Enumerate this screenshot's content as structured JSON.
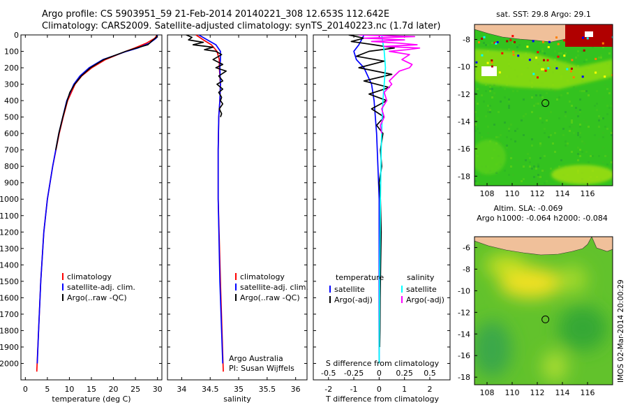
{
  "header": {
    "line1": "Argo profile: CS 5903951_59 21-Feb-2014 20140221_308 12.653S 112.642E",
    "line2": "Climatology: CARS2009. Satellite-adjusted climatology: synTS_20140223.nc (1.7d later)"
  },
  "chart_data": [
    {
      "type": "line",
      "id": "temperature",
      "xlabel": "temperature (deg C)",
      "xlim": [
        -1,
        31
      ],
      "ylim": [
        2100,
        0
      ],
      "xticks": [
        0,
        5,
        10,
        15,
        20,
        25,
        30
      ],
      "yticks": [
        0,
        100,
        200,
        300,
        400,
        500,
        600,
        700,
        800,
        900,
        1000,
        1100,
        1200,
        1300,
        1400,
        1500,
        1600,
        1700,
        1800,
        1900,
        2000
      ],
      "legend": [
        "climatology",
        "satellite-adj. clim.",
        "Argo(..raw -QC)"
      ],
      "series": [
        {
          "name": "climatology",
          "color": "#ff0000",
          "depth": [
            0,
            20,
            50,
            80,
            100,
            150,
            200,
            250,
            300,
            400,
            500,
            600,
            800,
            1000,
            1200,
            1500,
            1800,
            2050
          ],
          "values": [
            29.9,
            29.4,
            27.5,
            24.8,
            22.8,
            18.2,
            15.1,
            12.8,
            11.3,
            9.6,
            8.6,
            7.7,
            6.2,
            5.0,
            4.2,
            3.5,
            3.0,
            2.6
          ]
        },
        {
          "name": "satellite-adj. clim.",
          "color": "#0000ff",
          "depth": [
            0,
            20,
            50,
            80,
            100,
            150,
            200,
            250,
            300,
            400,
            500,
            600,
            800,
            1000,
            1200,
            1500,
            1800,
            2000
          ],
          "values": [
            30.0,
            29.7,
            28.2,
            25.5,
            23.0,
            17.6,
            14.5,
            12.4,
            11.0,
            9.4,
            8.5,
            7.6,
            6.2,
            5.0,
            4.2,
            3.5,
            3.0,
            2.7
          ]
        },
        {
          "name": "Argo(..raw -QC)",
          "color": "#000000",
          "depth": [
            0,
            10,
            20,
            40,
            60,
            80,
            100,
            150,
            200,
            250,
            300,
            350,
            400,
            500,
            600,
            700
          ],
          "values": [
            29.8,
            29.9,
            29.5,
            28.6,
            27.8,
            25.2,
            22.8,
            17.8,
            14.8,
            12.7,
            11.2,
            10.1,
            9.5,
            8.5,
            7.6,
            6.9
          ]
        }
      ]
    },
    {
      "type": "line",
      "id": "salinity",
      "xlabel": "salinity",
      "xlim": [
        33.75,
        36.2
      ],
      "ylim": [
        2100,
        0
      ],
      "xticks": [
        34,
        34.5,
        35,
        35.5,
        36
      ],
      "legend": [
        "climatology",
        "satellite-adj. clim.",
        "Argo(..raw -QC)"
      ],
      "annotation": [
        "Argo Australia",
        "PI: Susan Wijffels"
      ],
      "series": [
        {
          "name": "climatology",
          "color": "#ff0000",
          "depth": [
            0,
            30,
            60,
            100,
            150,
            200,
            300,
            400,
            500,
            700,
            1000,
            1500,
            2050
          ],
          "values": [
            34.25,
            34.38,
            34.52,
            34.62,
            34.66,
            34.66,
            34.68,
            34.67,
            34.65,
            34.64,
            34.64,
            34.68,
            34.73
          ]
        },
        {
          "name": "satellite-adj. clim.",
          "color": "#0000ff",
          "depth": [
            0,
            30,
            60,
            100,
            150,
            200,
            300,
            400,
            500,
            700,
            1000,
            1500,
            2000
          ],
          "values": [
            34.3,
            34.45,
            34.6,
            34.68,
            34.68,
            34.67,
            34.68,
            34.67,
            34.65,
            34.64,
            34.64,
            34.67,
            34.72
          ]
        },
        {
          "name": "Argo(..raw -QC)",
          "color": "#000000",
          "depth": [
            0,
            15,
            30,
            45,
            60,
            75,
            90,
            100,
            120,
            150,
            180,
            200,
            220,
            250,
            280,
            300,
            330,
            350,
            380,
            400,
            420,
            450,
            480,
            500
          ],
          "values": [
            34.08,
            34.18,
            34.12,
            34.38,
            34.2,
            34.55,
            34.4,
            34.6,
            34.7,
            34.55,
            34.72,
            34.6,
            34.78,
            34.65,
            34.72,
            34.62,
            34.72,
            34.65,
            34.7,
            34.68,
            34.72,
            34.66,
            34.7,
            34.68
          ]
        }
      ]
    },
    {
      "type": "line",
      "id": "difference",
      "xlabel": "T difference from climatology",
      "xlabel_top": "S difference from climatology",
      "xlim": [
        -2.6,
        2.8
      ],
      "ylim": [
        2100,
        0
      ],
      "xticks_bottom": [
        {
          "v": -2,
          "label": "-2"
        },
        {
          "v": -1,
          "label": "-1"
        },
        {
          "v": 0,
          "label": "0"
        },
        {
          "v": 1,
          "label": "1"
        },
        {
          "v": 2,
          "label": "2"
        }
      ],
      "xticks_top": [
        {
          "v": -2,
          "label": "-0.5"
        },
        {
          "v": -1,
          "label": "-0.25"
        },
        {
          "v": 0,
          "label": "0"
        },
        {
          "v": 1,
          "label": "0.25"
        },
        {
          "v": 2,
          "label": "0.5"
        }
      ],
      "legend_left_title": "temperature",
      "legend_right_title": "salinity",
      "legend_left": [
        "satellite",
        "Argo(-adj)"
      ],
      "legend_right": [
        "satellite",
        "Argo(-adj)"
      ],
      "series": [
        {
          "name": "T satellite",
          "color": "#0000ff",
          "depth": [
            0,
            30,
            60,
            100,
            150,
            200,
            300,
            400,
            500,
            600,
            800,
            1000,
            1500,
            2000
          ],
          "values": [
            -0.6,
            -0.7,
            -0.8,
            -1.0,
            -0.9,
            -0.6,
            -0.3,
            -0.2,
            -0.15,
            -0.1,
            -0.05,
            0.0,
            0.0,
            0.0
          ]
        },
        {
          "name": "T Argo(-adj)",
          "color": "#000000",
          "depth": [
            0,
            20,
            40,
            60,
            80,
            100,
            130,
            160,
            200,
            240,
            280,
            320,
            360,
            400,
            450,
            500,
            550,
            600,
            700,
            800,
            900,
            1000,
            1200,
            1400,
            1600,
            1800,
            1900
          ],
          "values": [
            -1.2,
            -0.6,
            -1.1,
            -0.2,
            0.6,
            -0.4,
            -0.9,
            0.2,
            -0.8,
            0.5,
            -0.6,
            0.4,
            -0.4,
            0.3,
            -0.3,
            0.2,
            -0.1,
            0.15,
            0.05,
            0.1,
            0.0,
            0.05,
            0.08,
            0.06,
            0.04,
            0.03,
            0.02
          ]
        },
        {
          "name": "S satellite",
          "color": "#00ffff",
          "depth": [
            0,
            50,
            100,
            200,
            300,
            400,
            500,
            700,
            1000,
            1500,
            2000
          ],
          "values": [
            0.1,
            0.15,
            0.2,
            0.25,
            0.2,
            0.15,
            0.12,
            0.08,
            0.05,
            0.02,
            0.0
          ]
        },
        {
          "name": "S Argo(-adj)",
          "color": "#ff00ff",
          "depth": [
            0,
            10,
            20,
            30,
            40,
            50,
            60,
            70,
            80,
            90,
            100,
            120,
            150,
            180,
            200,
            220,
            250,
            280,
            300,
            350,
            400,
            450,
            500,
            550,
            600
          ],
          "values": [
            -0.8,
            1.4,
            -0.6,
            1.0,
            -0.3,
            0.8,
            1.5,
            0.2,
            1.6,
            1.1,
            0.4,
            1.2,
            0.9,
            1.3,
            1.2,
            0.8,
            0.6,
            0.4,
            0.5,
            0.2,
            0.3,
            0.1,
            0.2,
            0.05,
            0.1
          ]
        }
      ]
    },
    {
      "type": "heatmap",
      "id": "sst-map",
      "title": "sat. SST: 29.8 Argo: 29.1",
      "xlim": [
        107,
        118
      ],
      "ylim": [
        -18.7,
        -6.9
      ],
      "xticks": [
        {
          "v": 108,
          "label": "108"
        },
        {
          "v": 110,
          "label": "110"
        },
        {
          "v": 112,
          "label": "112"
        },
        {
          "v": 114,
          "label": "114"
        },
        {
          "v": 116,
          "label": "116"
        }
      ],
      "yticks": [
        {
          "v": -8,
          "label": "-8"
        },
        {
          "v": -10,
          "label": "-10"
        },
        {
          "v": -12,
          "label": "-12"
        },
        {
          "v": -14,
          "label": "-14"
        },
        {
          "v": -16,
          "label": "-16"
        },
        {
          "v": -18,
          "label": "-18"
        }
      ],
      "marker": {
        "lon": 112.642,
        "lat": -12.653
      }
    },
    {
      "type": "heatmap",
      "id": "sla-map",
      "title": "Altim. SLA: -0.069",
      "subtitle": "Argo h1000: -0.064 h2000: -0.084",
      "xlim": [
        107,
        118
      ],
      "ylim": [
        -18.7,
        -5.0
      ],
      "xticks": [
        {
          "v": 108,
          "label": "108"
        },
        {
          "v": 110,
          "label": "110"
        },
        {
          "v": 112,
          "label": "112"
        },
        {
          "v": 114,
          "label": "114"
        },
        {
          "v": 116,
          "label": "116"
        }
      ],
      "yticks": [
        {
          "v": -6,
          "label": "-6"
        },
        {
          "v": -8,
          "label": "-8"
        },
        {
          "v": -10,
          "label": "-10"
        },
        {
          "v": -12,
          "label": "-12"
        },
        {
          "v": -14,
          "label": "-14"
        },
        {
          "v": -16,
          "label": "-16"
        },
        {
          "v": -18,
          "label": "-18"
        }
      ],
      "marker": {
        "lon": 112.642,
        "lat": -12.653
      }
    }
  ],
  "footer": {
    "stamp": "IMOS 02-Mar-2014 20:00:29"
  }
}
